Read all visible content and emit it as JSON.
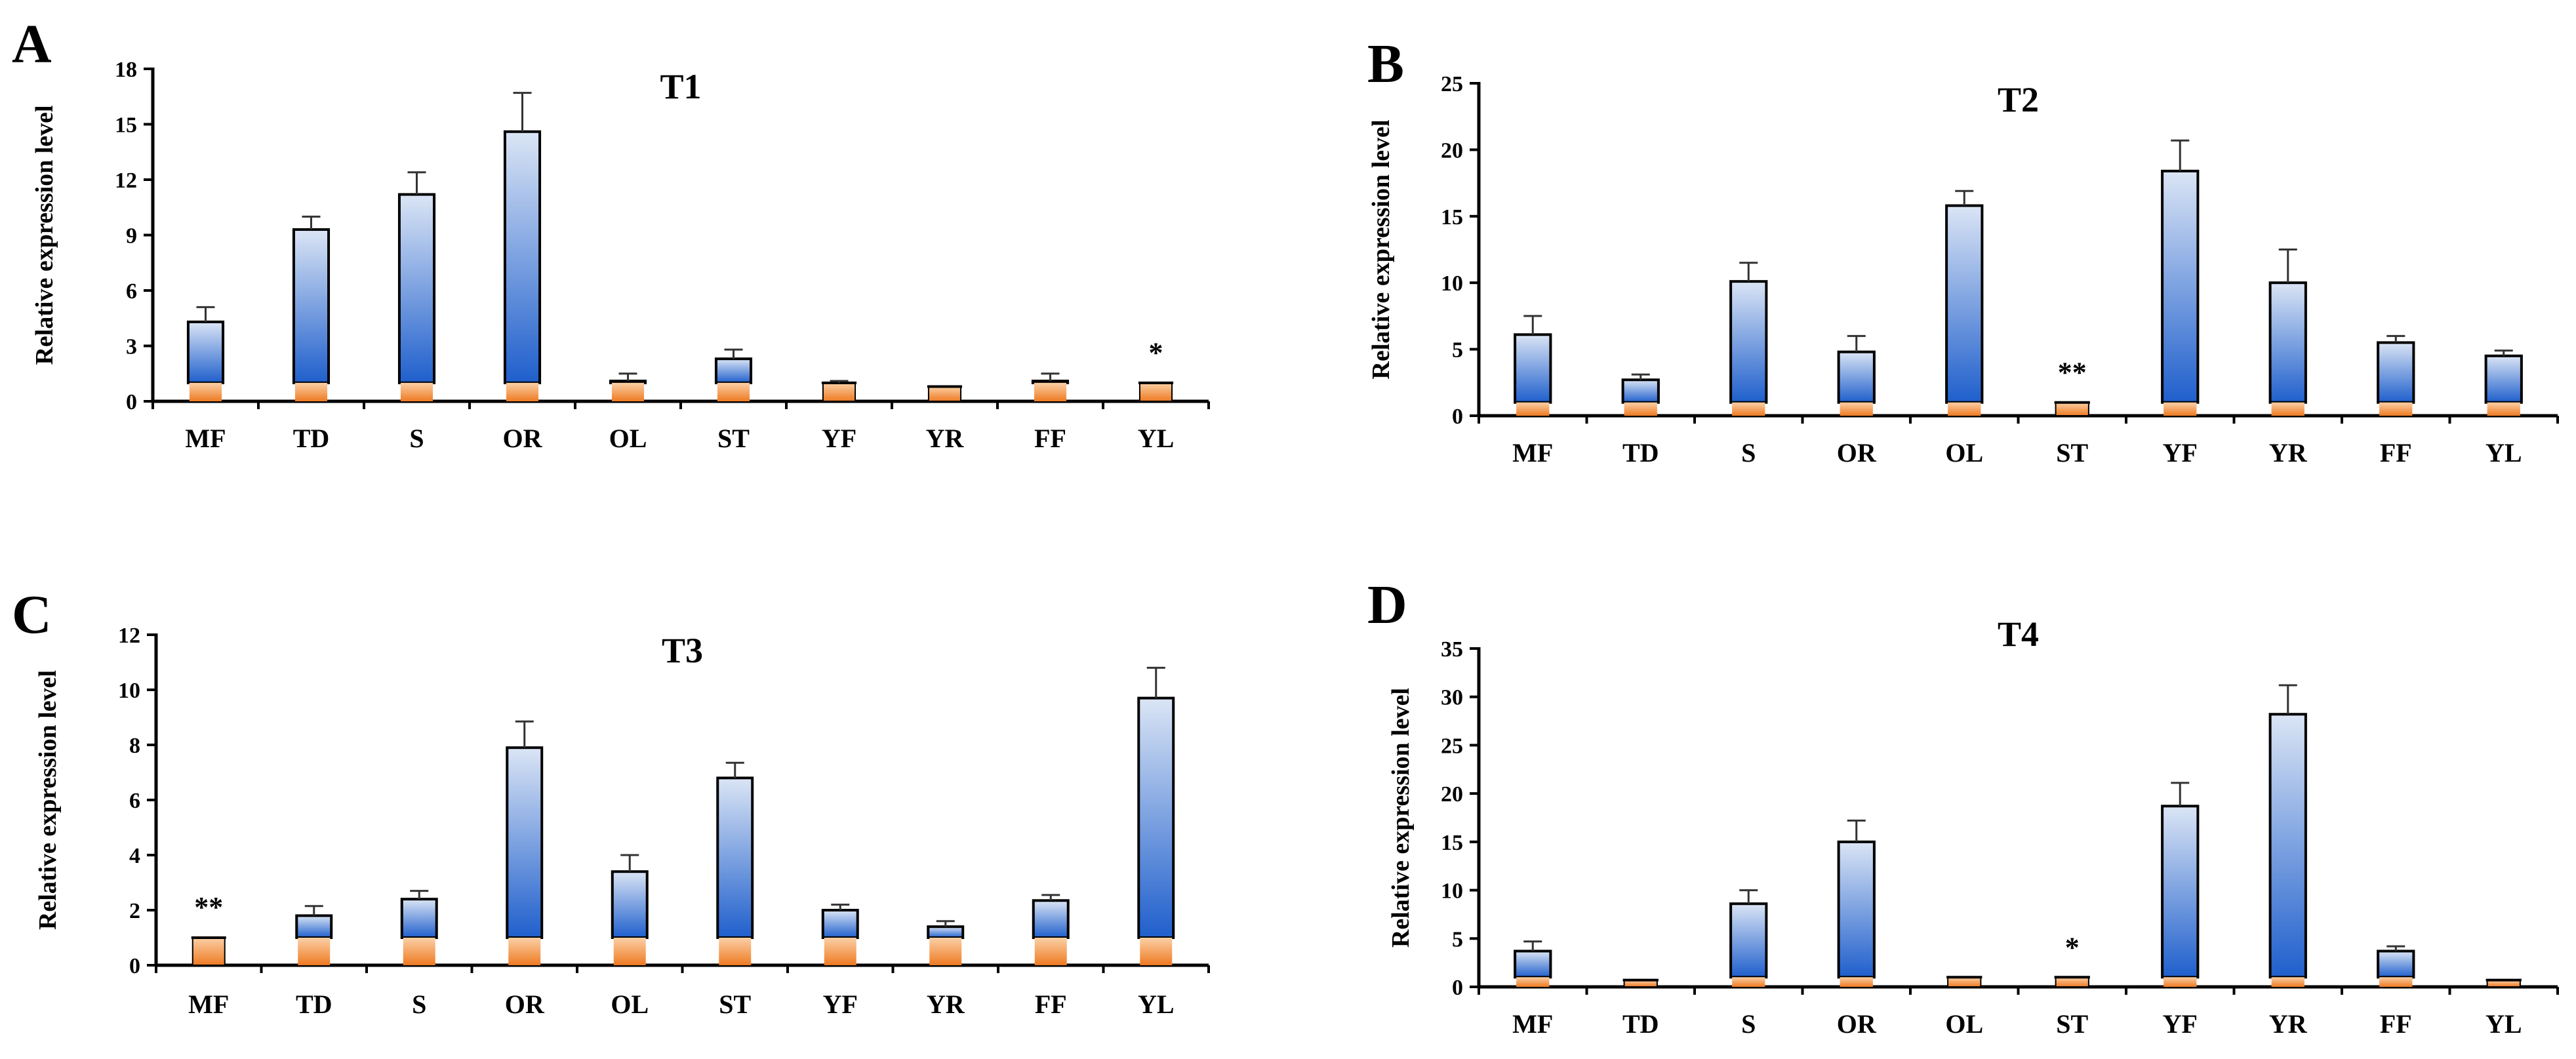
{
  "colors": {
    "bar_top": "#dbe5f5",
    "bar_bottom": "#1f5fcc",
    "base_top": "#fbd0a6",
    "base_bottom": "#ee7a22",
    "axis": "#000000"
  },
  "chart_data": [
    {
      "type": "bar",
      "panel_label": "A",
      "title": "T1",
      "ylabel": "Relative expression level",
      "xlabel": "",
      "categories": [
        "MF",
        "TD",
        "S",
        "OR",
        "OL",
        "ST",
        "YF",
        "YR",
        "FF",
        "YL"
      ],
      "values": [
        4.3,
        9.3,
        11.2,
        14.6,
        1.1,
        2.3,
        1.0,
        0.8,
        1.1,
        1.0
      ],
      "errors": [
        0.8,
        0.7,
        1.2,
        2.1,
        0.4,
        0.5,
        0.1,
        0.05,
        0.4,
        0.05
      ],
      "baseline": 1,
      "ylim": [
        0,
        18
      ],
      "yticks": [
        0,
        3,
        6,
        9,
        12,
        15,
        18
      ],
      "annotations": [
        {
          "category": "YL",
          "text": "*"
        }
      ]
    },
    {
      "type": "bar",
      "panel_label": "B",
      "title": "T2",
      "ylabel": "Relative expression level",
      "xlabel": "",
      "categories": [
        "MF",
        "TD",
        "S",
        "OR",
        "OL",
        "ST",
        "YF",
        "YR",
        "FF",
        "YL"
      ],
      "values": [
        6.1,
        2.7,
        10.1,
        4.8,
        15.8,
        1.0,
        18.4,
        10.0,
        5.5,
        4.5
      ],
      "errors": [
        1.4,
        0.4,
        1.4,
        1.2,
        1.1,
        0.05,
        2.3,
        2.5,
        0.5,
        0.4
      ],
      "baseline": 1,
      "ylim": [
        0,
        25
      ],
      "yticks": [
        0,
        5,
        10,
        15,
        20,
        25
      ],
      "annotations": [
        {
          "category": "ST",
          "text": "**"
        }
      ]
    },
    {
      "type": "bar",
      "panel_label": "C",
      "title": "T3",
      "ylabel": "Relative expression level",
      "xlabel": "",
      "categories": [
        "MF",
        "TD",
        "S",
        "OR",
        "OL",
        "ST",
        "YF",
        "YR",
        "FF",
        "YL"
      ],
      "values": [
        1.0,
        1.8,
        2.4,
        7.9,
        3.4,
        6.8,
        2.0,
        1.4,
        2.35,
        9.7
      ],
      "errors": [
        0.05,
        0.35,
        0.3,
        0.95,
        0.6,
        0.55,
        0.2,
        0.2,
        0.2,
        1.1
      ],
      "baseline": 1,
      "ylim": [
        0,
        12
      ],
      "yticks": [
        0,
        2,
        4,
        6,
        8,
        10,
        12
      ],
      "annotations": [
        {
          "category": "MF",
          "text": "**"
        }
      ]
    },
    {
      "type": "bar",
      "panel_label": "D",
      "title": "T4",
      "ylabel": "Relative expression level",
      "xlabel": "",
      "categories": [
        "MF",
        "TD",
        "S",
        "OR",
        "OL",
        "ST",
        "YF",
        "YR",
        "FF",
        "YL"
      ],
      "values": [
        3.7,
        0.7,
        8.6,
        15.0,
        1.0,
        1.0,
        18.7,
        28.2,
        3.7,
        0.7
      ],
      "errors": [
        1.0,
        0.05,
        1.4,
        2.2,
        0.05,
        0.05,
        2.4,
        3.0,
        0.5,
        0.05
      ],
      "baseline": 1,
      "ylim": [
        0,
        35
      ],
      "yticks": [
        0,
        5,
        10,
        15,
        20,
        25,
        30,
        35
      ],
      "annotations": [
        {
          "category": "ST",
          "text": "*"
        }
      ]
    }
  ]
}
